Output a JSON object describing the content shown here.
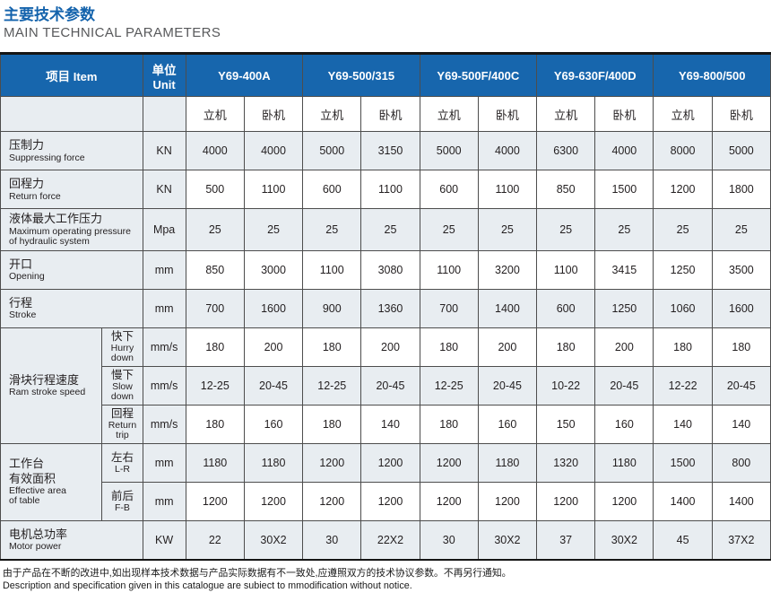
{
  "page": {
    "title_cn": "主要技术参数",
    "title_en": "MAIN TECHNICAL PARAMETERS",
    "footer_cn": "由于产品在不断的改进中,如出现样本技术数据与产品实际数据有不一致处,应遵照双方的技术协议参数。不再另行通知。",
    "footer_en": "Description and specification given in this catalogue are subiect to mmodification without notice."
  },
  "colors": {
    "accent_blue": "#1766ad",
    "title_blue": "#1463ac",
    "row_shade": "#e8edf1",
    "grid_border": "#4d4d4d"
  },
  "table": {
    "item_header": {
      "cn": "项目",
      "en": "Item"
    },
    "unit_header": {
      "cn": "单位",
      "en": "Unit"
    },
    "models": [
      "Y69-400A",
      "Y69-500/315",
      "Y69-500F/400C",
      "Y69-630F/400D",
      "Y69-800/500"
    ],
    "orientation_labels": [
      "立机",
      "卧机"
    ],
    "rows": [
      {
        "cn": "压制力",
        "en": "Suppressing force",
        "unit": "KN",
        "shaded": true,
        "values": [
          "4000",
          "4000",
          "5000",
          "3150",
          "5000",
          "4000",
          "6300",
          "4000",
          "8000",
          "5000"
        ]
      },
      {
        "cn": "回程力",
        "en": "Return force",
        "unit": "KN",
        "shaded": false,
        "values": [
          "500",
          "1100",
          "600",
          "1100",
          "600",
          "1100",
          "850",
          "1500",
          "1200",
          "1800"
        ]
      },
      {
        "cn": "液体最大工作压力",
        "en": "Maximum operating pressure of hydraulic system",
        "unit": "Mpa",
        "shaded": true,
        "values": [
          "25",
          "25",
          "25",
          "25",
          "25",
          "25",
          "25",
          "25",
          "25",
          "25"
        ]
      },
      {
        "cn": "开口",
        "en": "Opening",
        "unit": "mm",
        "shaded": false,
        "values": [
          "850",
          "3000",
          "1100",
          "3080",
          "1100",
          "3200",
          "1100",
          "3415",
          "1250",
          "3500"
        ]
      },
      {
        "cn": "行程",
        "en": "Stroke",
        "unit": "mm",
        "shaded": true,
        "values": [
          "700",
          "1600",
          "900",
          "1360",
          "700",
          "1400",
          "600",
          "1250",
          "1060",
          "1600"
        ]
      },
      {
        "group_cn": "滑块行程速度",
        "group_en": "Ram stroke speed",
        "group_span": 3,
        "sub_cn": "快下",
        "sub_en": "Hurry down",
        "unit": "mm/s",
        "shaded": false,
        "values": [
          "180",
          "200",
          "180",
          "200",
          "180",
          "200",
          "180",
          "200",
          "180",
          "180"
        ]
      },
      {
        "sub_cn": "慢下",
        "sub_en": "Slow down",
        "unit": "mm/s",
        "shaded": true,
        "values": [
          "12-25",
          "20-45",
          "12-25",
          "20-45",
          "12-25",
          "20-45",
          "10-22",
          "20-45",
          "12-22",
          "20-45"
        ]
      },
      {
        "sub_cn": "回程",
        "sub_en": "Return trip",
        "unit": "mm/s",
        "shaded": false,
        "values": [
          "180",
          "160",
          "180",
          "140",
          "180",
          "160",
          "150",
          "160",
          "140",
          "140"
        ]
      },
      {
        "group_cn": "工作台\n有效面积",
        "group_en": "Effective area\nof table",
        "group_span": 2,
        "sub_cn": "左右",
        "sub_en": "L-R",
        "unit": "mm",
        "shaded": true,
        "values": [
          "1180",
          "1180",
          "1200",
          "1200",
          "1200",
          "1180",
          "1320",
          "1180",
          "1500",
          "800"
        ]
      },
      {
        "sub_cn": "前后",
        "sub_en": "F-B",
        "unit": "mm",
        "shaded": false,
        "values": [
          "1200",
          "1200",
          "1200",
          "1200",
          "1200",
          "1200",
          "1200",
          "1200",
          "1400",
          "1400"
        ]
      },
      {
        "cn": "电机总功率",
        "en": "Motor power",
        "unit": "KW",
        "shaded": true,
        "values": [
          "22",
          "30X2",
          "30",
          "22X2",
          "30",
          "30X2",
          "37",
          "30X2",
          "45",
          "37X2"
        ]
      }
    ]
  }
}
